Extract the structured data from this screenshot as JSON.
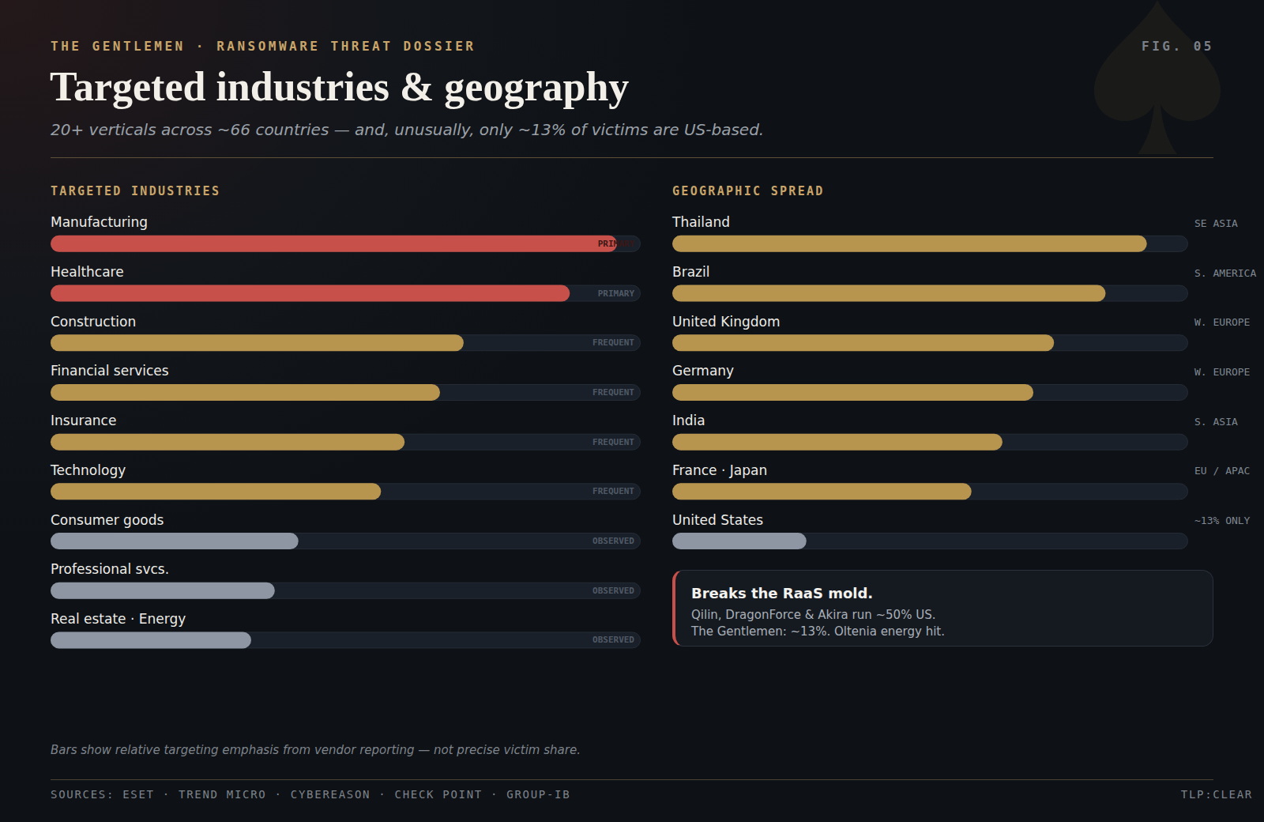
{
  "header": {
    "kicker": "THE GENTLEMEN · RANSOMWARE THREAT DOSSIER",
    "fig": "FIG. 05",
    "title": "Targeted industries & geography",
    "subtitle": "20+ verticals across ~66 countries — and, unusually, only ~13% of victims are US-based."
  },
  "chart_data": [
    {
      "type": "bar",
      "orientation": "horizontal",
      "title": "TARGETED INDUSTRIES",
      "categories": [
        "Manufacturing",
        "Healthcare",
        "Construction",
        "Financial services",
        "Insurance",
        "Technology",
        "Consumer goods",
        "Professional svcs.",
        "Real estate · Energy"
      ],
      "values": [
        96,
        88,
        70,
        66,
        60,
        56,
        42,
        38,
        34
      ],
      "colors": [
        "#c8504a",
        "#c8504a",
        "#b8954f",
        "#b8954f",
        "#b8954f",
        "#b8954f",
        "#8e96a3",
        "#8e96a3",
        "#8e96a3"
      ],
      "tags": [
        "PRIMARY",
        "PRIMARY",
        "FREQUENT",
        "FREQUENT",
        "FREQUENT",
        "FREQUENT",
        "OBSERVED",
        "OBSERVED",
        "OBSERVED"
      ],
      "xlim": [
        0,
        100
      ],
      "tick_labels": false,
      "grid": false
    },
    {
      "type": "bar",
      "orientation": "horizontal",
      "title": "GEOGRAPHIC SPREAD",
      "categories": [
        "Thailand",
        "Brazil",
        "United Kingdom",
        "Germany",
        "India",
        "France · Japan",
        "United States"
      ],
      "values": [
        92,
        84,
        74,
        70,
        64,
        58,
        26
      ],
      "colors": [
        "#b8954f",
        "#b8954f",
        "#b8954f",
        "#b8954f",
        "#b8954f",
        "#b8954f",
        "#8e96a3"
      ],
      "tags": [
        "SE ASIA",
        "S. AMERICA",
        "W. EUROPE",
        "W. EUROPE",
        "S. ASIA",
        "EU / APAC",
        "~13% ONLY"
      ],
      "xlim": [
        0,
        100
      ],
      "tick_labels": false,
      "grid": false
    }
  ],
  "callout": {
    "title": "Breaks the RaaS mold.",
    "lines": [
      "Qilin, DragonForce & Akira run ~50% US.",
      "The Gentlemen: ~13%. Oltenia energy hit."
    ]
  },
  "footnote": "Bars show relative targeting emphasis from vendor reporting — not precise victim share.",
  "footer": {
    "sources": "SOURCES: ESET · TREND MICRO · CYBEREASON · CHECK POINT · GROUP-IB",
    "classification": "TLP:CLEAR"
  }
}
